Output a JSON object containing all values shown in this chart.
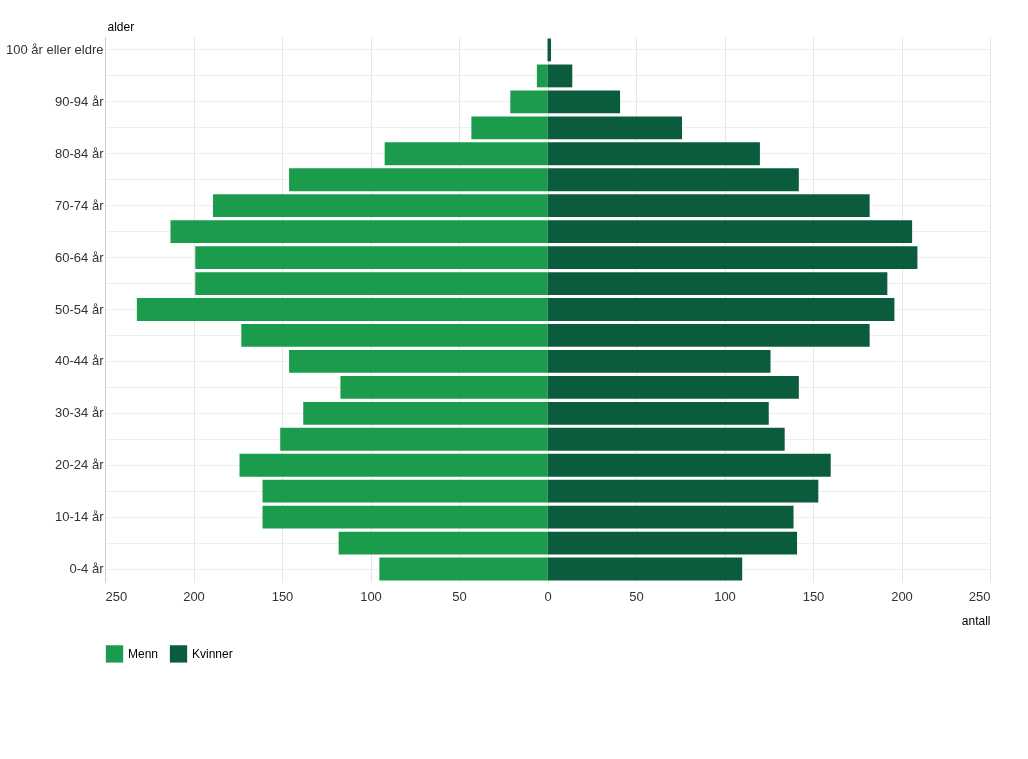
{
  "chart_data": {
    "type": "bar",
    "orientation": "horizontal",
    "xlabel": "antall",
    "ylabel": "alder",
    "categories": [
      "100 år eller eldre",
      null,
      "90-94 år",
      null,
      "80-84 år",
      null,
      "70-74 år",
      null,
      "60-64 år",
      null,
      "50-54 år",
      null,
      "40-44 år",
      null,
      "30-34 år",
      null,
      "20-24 år",
      null,
      "10-14 år",
      null,
      "0-4 år"
    ],
    "series": [
      {
        "name": "Menn",
        "color": "#1a9c4c",
        "values": [
          0,
          -6,
          -21,
          -43,
          -92,
          -146,
          -189,
          -213,
          -199,
          -199,
          -232,
          -173,
          -146,
          -117,
          -138,
          -151,
          -174,
          -161,
          -161,
          -118,
          -95
        ]
      },
      {
        "name": "Kvinner",
        "color": "#0b5c3d",
        "values": [
          2,
          14,
          41,
          76,
          120,
          142,
          182,
          206,
          209,
          192,
          196,
          182,
          126,
          142,
          125,
          134,
          160,
          153,
          139,
          141,
          110
        ]
      }
    ],
    "xlim": [
      -250,
      250
    ],
    "xticks": [
      {
        "value": -250,
        "label": "250"
      },
      {
        "value": -200,
        "label": "200"
      },
      {
        "value": -150,
        "label": "150"
      },
      {
        "value": -100,
        "label": "100"
      },
      {
        "value": -50,
        "label": "50"
      },
      0,
      50,
      100,
      150,
      200,
      250
    ],
    "grid": true,
    "legend": "bottom",
    "stacked": true
  }
}
